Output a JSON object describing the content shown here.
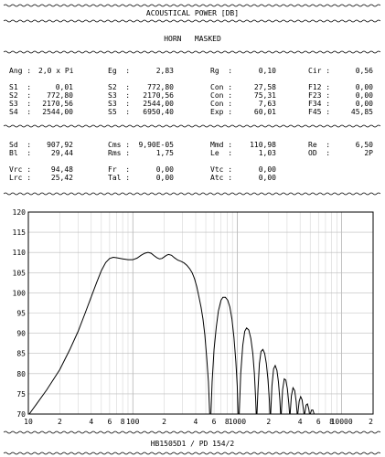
{
  "header": {
    "title": "ACOUSTICAL POWER [DB]",
    "subtitle": "HORN   MASKED"
  },
  "params": {
    "row1": [
      {
        "label": "Ang :",
        "value": "2,0 x Pi"
      },
      {
        "label": "Eg  :",
        "value": "2,83"
      },
      {
        "label": "Rg  :",
        "value": "0,10"
      },
      {
        "label": "Cir :",
        "value": "0,56"
      }
    ],
    "grid1": [
      [
        {
          "label": "S1  :",
          "value": "0,01"
        },
        {
          "label": "S2  :",
          "value": "772,80"
        },
        {
          "label": "Con :",
          "value": "27,58"
        },
        {
          "label": "F12 :",
          "value": "0,00"
        }
      ],
      [
        {
          "label": "S2  :",
          "value": "772,80"
        },
        {
          "label": "S3  :",
          "value": "2170,56"
        },
        {
          "label": "Con :",
          "value": "75,31"
        },
        {
          "label": "F23 :",
          "value": "0,00"
        }
      ],
      [
        {
          "label": "S3  :",
          "value": "2170,56"
        },
        {
          "label": "S3  :",
          "value": "2544,00"
        },
        {
          "label": "Con :",
          "value": "7,63"
        },
        {
          "label": "F34 :",
          "value": "0,00"
        }
      ],
      [
        {
          "label": "S4  :",
          "value": "2544,00"
        },
        {
          "label": "S5  :",
          "value": "6950,40"
        },
        {
          "label": "Exp :",
          "value": "60,01"
        },
        {
          "label": "F45 :",
          "value": "45,85"
        }
      ]
    ],
    "grid2": [
      [
        {
          "label": "Sd  :",
          "value": "907,92"
        },
        {
          "label": "Cms :",
          "value": "9,90E-05"
        },
        {
          "label": "Mmd :",
          "value": "110,98"
        },
        {
          "label": "Re  :",
          "value": "6,50"
        }
      ],
      [
        {
          "label": "Bl  :",
          "value": "29,44"
        },
        {
          "label": "Rms :",
          "value": "1,75"
        },
        {
          "label": "Le  :",
          "value": "1,03"
        },
        {
          "label": "OD  :",
          "value": "2P"
        }
      ]
    ],
    "grid3": [
      [
        {
          "label": "Vrc :",
          "value": "94,48"
        },
        {
          "label": "Fr  :",
          "value": "0,00"
        },
        {
          "label": "Vtc :",
          "value": "0,00"
        }
      ],
      [
        {
          "label": "Lrc :",
          "value": "25,42"
        },
        {
          "label": "Tal :",
          "value": "0,00"
        },
        {
          "label": "Atc :",
          "value": "0,00"
        }
      ]
    ]
  },
  "footer": {
    "label": "HB1505D1 / PD 154/2"
  },
  "chart_data": {
    "type": "line",
    "xscale": "log",
    "xlim": [
      10,
      20000
    ],
    "ylim": [
      70,
      120
    ],
    "grid": true,
    "yticks": [
      70,
      75,
      80,
      85,
      90,
      95,
      100,
      105,
      110,
      115,
      120
    ],
    "xtick_labels": [
      {
        "x": 10,
        "label": "10"
      },
      {
        "x": 20,
        "label": "2"
      },
      {
        "x": 40,
        "label": "4"
      },
      {
        "x": 60,
        "label": "6"
      },
      {
        "x": 80,
        "label": "8"
      },
      {
        "x": 100,
        "label": "100"
      },
      {
        "x": 200,
        "label": "2"
      },
      {
        "x": 400,
        "label": "4"
      },
      {
        "x": 600,
        "label": "6"
      },
      {
        "x": 800,
        "label": "8"
      },
      {
        "x": 1000,
        "label": "1000"
      },
      {
        "x": 2000,
        "label": "2"
      },
      {
        "x": 4000,
        "label": "4"
      },
      {
        "x": 6000,
        "label": "6"
      },
      {
        "x": 8000,
        "label": "8"
      },
      {
        "x": 10000,
        "label": "10000"
      },
      {
        "x": 20000,
        "label": "2"
      }
    ],
    "series": [
      {
        "color": "#000000",
        "points": [
          [
            10.2,
            70
          ],
          [
            12,
            72.5
          ],
          [
            15,
            76
          ],
          [
            20,
            81
          ],
          [
            25,
            86
          ],
          [
            30,
            90.5
          ],
          [
            35,
            95
          ],
          [
            40,
            99
          ],
          [
            45,
            102.5
          ],
          [
            50,
            105.5
          ],
          [
            55,
            107.5
          ],
          [
            60,
            108.5
          ],
          [
            65,
            108.8
          ],
          [
            70,
            108.7
          ],
          [
            80,
            108.4
          ],
          [
            90,
            108.2
          ],
          [
            100,
            108.2
          ],
          [
            110,
            108.6
          ],
          [
            120,
            109.3
          ],
          [
            130,
            109.8
          ],
          [
            140,
            110
          ],
          [
            150,
            109.8
          ],
          [
            160,
            109.2
          ],
          [
            170,
            108.7
          ],
          [
            180,
            108.4
          ],
          [
            190,
            108.5
          ],
          [
            200,
            108.9
          ],
          [
            210,
            109.3
          ],
          [
            220,
            109.5
          ],
          [
            235,
            109.3
          ],
          [
            250,
            108.7
          ],
          [
            270,
            108.1
          ],
          [
            290,
            107.8
          ],
          [
            310,
            107.4
          ],
          [
            330,
            106.8
          ],
          [
            350,
            106
          ],
          [
            370,
            105
          ],
          [
            390,
            103.5
          ],
          [
            410,
            101.5
          ],
          [
            430,
            99
          ],
          [
            450,
            96.5
          ],
          [
            470,
            93.5
          ],
          [
            490,
            89.5
          ],
          [
            510,
            84
          ],
          [
            530,
            78
          ],
          [
            545,
            70
          ],
          [
            560,
            70
          ],
          [
            575,
            78
          ],
          [
            600,
            86
          ],
          [
            630,
            91.5
          ],
          [
            660,
            95.5
          ],
          [
            700,
            98.2
          ],
          [
            730,
            98.9
          ],
          [
            770,
            98.9
          ],
          [
            810,
            98.2
          ],
          [
            850,
            96.5
          ],
          [
            890,
            93.5
          ],
          [
            930,
            89
          ],
          [
            970,
            83
          ],
          [
            1000,
            77
          ],
          [
            1020,
            70
          ],
          [
            1045,
            70
          ],
          [
            1080,
            80
          ],
          [
            1130,
            87
          ],
          [
            1180,
            90.5
          ],
          [
            1230,
            91.3
          ],
          [
            1290,
            90.8
          ],
          [
            1350,
            88.7
          ],
          [
            1410,
            85
          ],
          [
            1460,
            80
          ],
          [
            1500,
            74
          ],
          [
            1520,
            70
          ],
          [
            1545,
            70
          ],
          [
            1580,
            76
          ],
          [
            1630,
            82.5
          ],
          [
            1690,
            85.5
          ],
          [
            1760,
            86
          ],
          [
            1830,
            85
          ],
          [
            1900,
            82.5
          ],
          [
            1970,
            78.5
          ],
          [
            2030,
            73.5
          ],
          [
            2060,
            70
          ],
          [
            2090,
            70
          ],
          [
            2150,
            77
          ],
          [
            2230,
            81.2
          ],
          [
            2310,
            82
          ],
          [
            2400,
            80.8
          ],
          [
            2480,
            78
          ],
          [
            2560,
            73.5
          ],
          [
            2600,
            70
          ],
          [
            2640,
            70
          ],
          [
            2720,
            76
          ],
          [
            2820,
            78.7
          ],
          [
            2920,
            78.4
          ],
          [
            3020,
            76.3
          ],
          [
            3120,
            72.5
          ],
          [
            3170,
            70
          ],
          [
            3210,
            70
          ],
          [
            3300,
            74.5
          ],
          [
            3420,
            76.5
          ],
          [
            3550,
            75.8
          ],
          [
            3670,
            73
          ],
          [
            3750,
            70
          ],
          [
            3800,
            70
          ],
          [
            3920,
            73.2
          ],
          [
            4050,
            74.3
          ],
          [
            4180,
            73.5
          ],
          [
            4300,
            71.2
          ],
          [
            4360,
            70
          ],
          [
            4420,
            70
          ],
          [
            4560,
            72.2
          ],
          [
            4700,
            72.5
          ],
          [
            4840,
            71.3
          ],
          [
            4920,
            70
          ],
          [
            5000,
            70
          ],
          [
            5150,
            71
          ],
          [
            5300,
            71
          ],
          [
            5450,
            70
          ]
        ]
      }
    ]
  }
}
